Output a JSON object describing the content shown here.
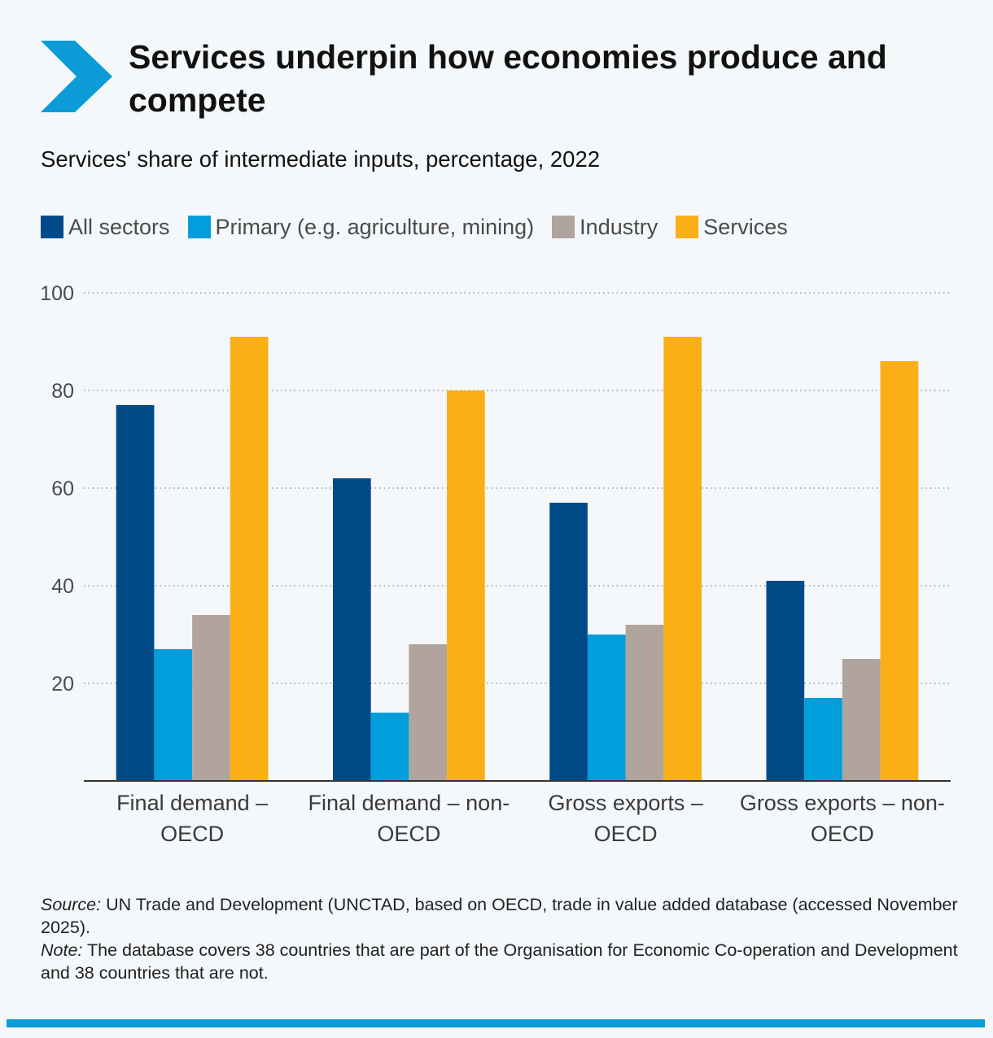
{
  "header": {
    "title": "Services underpin how economies produce and compete",
    "subtitle": "Services' share of intermediate inputs, percentage, 2022"
  },
  "colors": {
    "accent": "#0b9bd6",
    "all_sectors": "#004b87",
    "primary": "#009edb",
    "industry": "#b1a49c",
    "services": "#fbaf17",
    "grid": "#9a9a9a",
    "axis": "#333333"
  },
  "legend": [
    {
      "label": "All sectors",
      "color": "#004b87"
    },
    {
      "label": "Primary (e.g. agriculture, mining)",
      "color": "#009edb"
    },
    {
      "label": "Industry",
      "color": "#b1a49c"
    },
    {
      "label": "Services",
      "color": "#fbaf17"
    }
  ],
  "chart_data": {
    "type": "bar",
    "title": "Services' share of intermediate inputs, percentage, 2022",
    "xlabel": "",
    "ylabel": "",
    "ylim": [
      0,
      100
    ],
    "yticks": [
      20,
      40,
      60,
      80,
      100
    ],
    "grid": true,
    "legend_position": "top-left",
    "categories": [
      [
        "Final demand –",
        "OECD"
      ],
      [
        "Final demand – non-",
        "OECD"
      ],
      [
        "Gross exports –",
        "OECD"
      ],
      [
        "Gross exports – non-",
        "OECD"
      ]
    ],
    "series": [
      {
        "name": "All sectors",
        "color": "#004b87",
        "values": [
          77,
          62,
          57,
          41
        ]
      },
      {
        "name": "Primary (e.g. agriculture, mining)",
        "color": "#009edb",
        "values": [
          27,
          14,
          30,
          17
        ]
      },
      {
        "name": "Industry",
        "color": "#b1a49c",
        "values": [
          34,
          28,
          32,
          25
        ]
      },
      {
        "name": "Services",
        "color": "#fbaf17",
        "values": [
          91,
          80,
          91,
          86
        ]
      }
    ]
  },
  "footnote": {
    "source_label": "Source:",
    "source_text": " UN Trade and Development (UNCTAD, based on OECD, trade in value added database (accessed November 2025).",
    "note_label": "Note:",
    "note_text": " The database covers 38 countries that are part of the Organisation for Economic Co-operation and Development and 38 countries that are not."
  }
}
